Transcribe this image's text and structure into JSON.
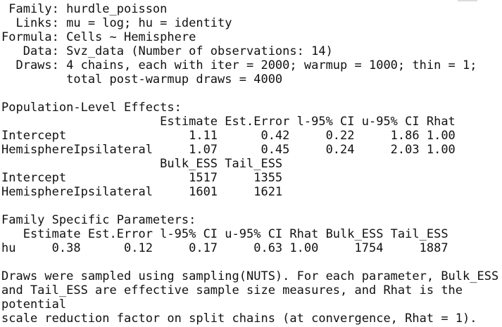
{
  "console": {
    "lines": [
      " Family: hurdle_poisson",
      "  Links: mu = log; hu = identity",
      "Formula: Cells ~ Hemisphere",
      "   Data: Svz_data (Number of observations: 14)",
      "  Draws: 4 chains, each with iter = 2000; warmup = 1000; thin = 1;",
      "         total post-warmup draws = 4000",
      " ",
      "Population-Level Effects:",
      "                      Estimate Est.Error l-95% CI u-95% CI Rhat",
      "Intercept                 1.11      0.42     0.22     1.86 1.00",
      "HemisphereIpsilateral     1.07      0.45     0.24     2.03 1.00",
      "                      Bulk_ESS Tail_ESS",
      "Intercept                 1517     1355",
      "HemisphereIpsilateral     1601     1621",
      " ",
      "Family Specific Parameters:",
      "   Estimate Est.Error l-95% CI u-95% CI Rhat Bulk_ESS Tail_ESS",
      "hu     0.38      0.12     0.17     0.63 1.00     1754     1887",
      " ",
      "Draws were sampled using sampling(NUTS). For each parameter, Bulk_ESS",
      "and Tail_ESS are effective sample size measures, and Rhat is the",
      "potential",
      "scale reduction factor on split chains (at convergence, Rhat = 1)."
    ]
  },
  "model_summary": {
    "family": "hurdle_poisson",
    "links": "mu = log; hu = identity",
    "formula": "Cells ~ Hemisphere",
    "data": "Svz_data",
    "n_observations": 14,
    "chains": 4,
    "iter": 2000,
    "warmup": 1000,
    "thin": 1,
    "total_post_warmup_draws": 4000,
    "population_level_effects": {
      "columns": [
        "Estimate",
        "Est.Error",
        "l-95% CI",
        "u-95% CI",
        "Rhat",
        "Bulk_ESS",
        "Tail_ESS"
      ],
      "rows": [
        {
          "name": "Intercept",
          "estimate": 1.11,
          "est_error": 0.42,
          "l95_ci": 0.22,
          "u95_ci": 1.86,
          "rhat": 1.0,
          "bulk_ess": 1517,
          "tail_ess": 1355
        },
        {
          "name": "HemisphereIpsilateral",
          "estimate": 1.07,
          "est_error": 0.45,
          "l95_ci": 0.24,
          "u95_ci": 2.03,
          "rhat": 1.0,
          "bulk_ess": 1601,
          "tail_ess": 1621
        }
      ]
    },
    "family_specific_parameters": {
      "columns": [
        "Estimate",
        "Est.Error",
        "l-95% CI",
        "u-95% CI",
        "Rhat",
        "Bulk_ESS",
        "Tail_ESS"
      ],
      "rows": [
        {
          "name": "hu",
          "estimate": 0.38,
          "est_error": 0.12,
          "l95_ci": 0.17,
          "u95_ci": 0.63,
          "rhat": 1.0,
          "bulk_ess": 1754,
          "tail_ess": 1887
        }
      ]
    },
    "footer": "Draws were sampled using sampling(NUTS). For each parameter, Bulk_ESS and Tail_ESS are effective sample size measures, and Rhat is the potential scale reduction factor on split chains (at convergence, Rhat = 1)."
  }
}
